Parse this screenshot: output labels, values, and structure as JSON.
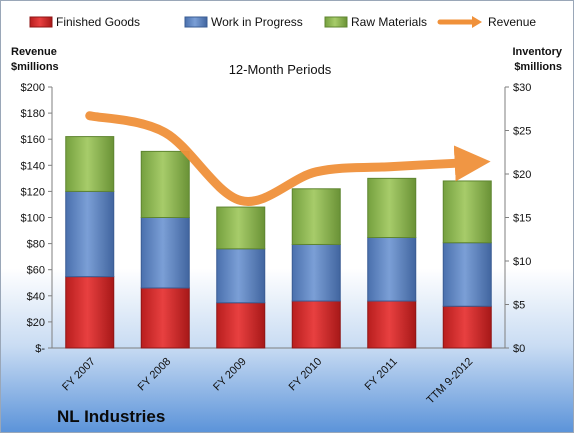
{
  "chart_data": {
    "type": "bar",
    "stacked": true,
    "company": "NL Industries",
    "subtitle": "12-Month Periods",
    "ylabel_left": [
      "Revenue",
      "$millions"
    ],
    "ylabel_right": [
      "Inventory",
      "$millions"
    ],
    "categories": [
      "FY 2007",
      "FY 2008",
      "FY 2009",
      "FY 2010",
      "FY 2011",
      "TTM 9-2012"
    ],
    "ylim_left": [
      0,
      200
    ],
    "ylim_right": [
      0,
      30
    ],
    "left_ticks": [
      "$-",
      "$20",
      "$40",
      "$60",
      "$80",
      "$100",
      "$120",
      "$140",
      "$160",
      "$180",
      "$200"
    ],
    "right_ticks": [
      "$0",
      "$5",
      "$10",
      "$15",
      "$20",
      "$25",
      "$30"
    ],
    "series": [
      {
        "name": "Finished Goods",
        "axis": "right",
        "color": "#d42a2a",
        "values": [
          8.2,
          6.9,
          5.2,
          5.4,
          5.4,
          4.8
        ]
      },
      {
        "name": "Work in Progress",
        "axis": "right",
        "color": "#5b84c4",
        "values": [
          9.8,
          8.1,
          6.2,
          6.5,
          7.3,
          7.3
        ]
      },
      {
        "name": "Raw Materials",
        "axis": "right",
        "color": "#8db550",
        "values": [
          6.3,
          7.6,
          4.8,
          6.4,
          6.8,
          7.1
        ]
      },
      {
        "name": "Revenue",
        "axis": "left",
        "type": "line",
        "color": "#f0913a",
        "values": [
          178,
          165,
          113,
          135,
          139,
          142
        ]
      }
    ],
    "legend_position": "top",
    "grid": false
  }
}
